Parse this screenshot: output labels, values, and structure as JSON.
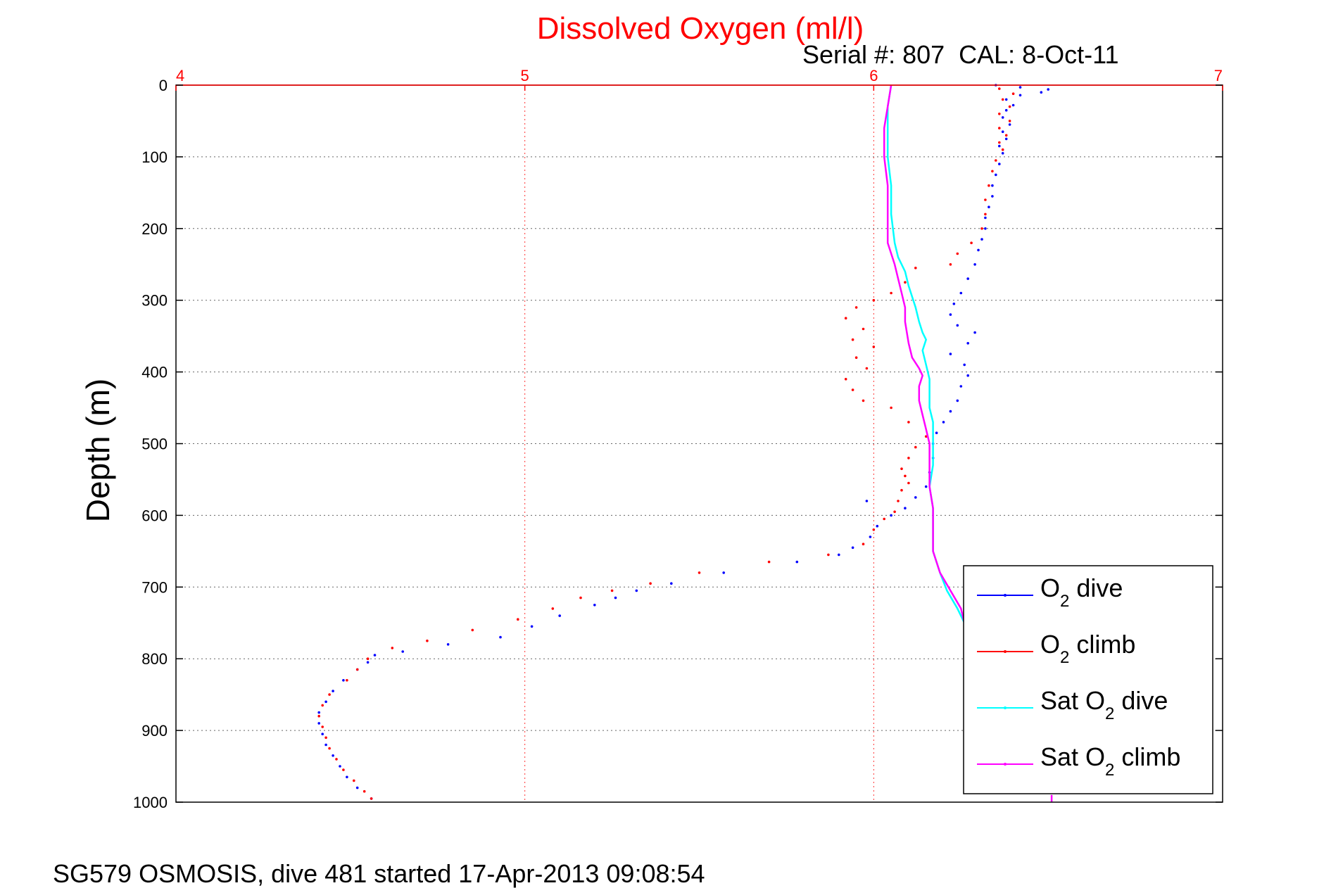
{
  "chart_data": {
    "type": "scatter",
    "title": "Dissolved Oxygen (ml/l)",
    "subtitle": "Serial #: 807  CAL: 8-Oct-11",
    "ylabel": "Depth (m)",
    "footer": "SG579 OSMOSIS, dive 481 started 17-Apr-2013 09:08:54",
    "xlim": [
      4,
      7
    ],
    "ylim": [
      0,
      1000
    ],
    "y_reversed": true,
    "x_axis_location": "top",
    "x_ticks": [
      "4",
      "5",
      "6",
      "7"
    ],
    "y_ticks": [
      "0",
      "100",
      "200",
      "300",
      "400",
      "500",
      "600",
      "700",
      "800",
      "900",
      "1000"
    ],
    "grid": true,
    "legend_position": "bottom-right",
    "legend": [
      {
        "base": "O",
        "sub": "2",
        "suffix": " dive",
        "prefix": ""
      },
      {
        "base": "O",
        "sub": "2",
        "suffix": " climb",
        "prefix": ""
      },
      {
        "base": "Sat O",
        "sub": "2",
        "suffix": " dive",
        "prefix": ""
      },
      {
        "base": "Sat O",
        "sub": "2",
        "suffix": " climb",
        "prefix": ""
      }
    ],
    "series": [
      {
        "name": "O2 dive",
        "color": "#0000ff",
        "style": "dots",
        "points": [
          [
            6.35,
            0
          ],
          [
            6.42,
            3
          ],
          [
            6.5,
            6
          ],
          [
            6.48,
            10
          ],
          [
            6.42,
            14
          ],
          [
            6.38,
            20
          ],
          [
            6.4,
            28
          ],
          [
            6.38,
            35
          ],
          [
            6.37,
            45
          ],
          [
            6.39,
            55
          ],
          [
            6.37,
            65
          ],
          [
            6.38,
            75
          ],
          [
            6.36,
            85
          ],
          [
            6.37,
            95
          ],
          [
            6.36,
            110
          ],
          [
            6.35,
            125
          ],
          [
            6.34,
            140
          ],
          [
            6.34,
            155
          ],
          [
            6.33,
            170
          ],
          [
            6.32,
            185
          ],
          [
            6.32,
            200
          ],
          [
            6.31,
            215
          ],
          [
            6.3,
            230
          ],
          [
            6.29,
            250
          ],
          [
            6.27,
            270
          ],
          [
            6.25,
            290
          ],
          [
            6.23,
            305
          ],
          [
            6.22,
            320
          ],
          [
            6.24,
            335
          ],
          [
            6.29,
            345
          ],
          [
            6.27,
            360
          ],
          [
            6.22,
            375
          ],
          [
            6.26,
            390
          ],
          [
            6.27,
            405
          ],
          [
            6.25,
            420
          ],
          [
            6.24,
            440
          ],
          [
            6.22,
            455
          ],
          [
            6.2,
            470
          ],
          [
            6.18,
            485
          ],
          [
            6.17,
            500
          ],
          [
            6.17,
            520
          ],
          [
            6.16,
            540
          ],
          [
            6.15,
            560
          ],
          [
            6.12,
            575
          ],
          [
            5.98,
            580
          ],
          [
            6.09,
            590
          ],
          [
            6.05,
            600
          ],
          [
            6.01,
            615
          ],
          [
            5.99,
            630
          ],
          [
            5.94,
            645
          ],
          [
            5.9,
            655
          ],
          [
            5.78,
            665
          ],
          [
            5.57,
            680
          ],
          [
            5.42,
            695
          ],
          [
            5.32,
            705
          ],
          [
            5.26,
            715
          ],
          [
            5.2,
            725
          ],
          [
            5.1,
            740
          ],
          [
            5.02,
            755
          ],
          [
            4.93,
            770
          ],
          [
            4.78,
            780
          ],
          [
            4.65,
            790
          ],
          [
            4.57,
            795
          ],
          [
            4.55,
            805
          ],
          [
            4.52,
            815
          ],
          [
            4.48,
            830
          ],
          [
            4.45,
            845
          ],
          [
            4.43,
            860
          ],
          [
            4.41,
            875
          ],
          [
            4.41,
            890
          ],
          [
            4.42,
            905
          ],
          [
            4.43,
            920
          ],
          [
            4.45,
            935
          ],
          [
            4.47,
            950
          ],
          [
            4.49,
            965
          ],
          [
            4.52,
            980
          ],
          [
            4.56,
            995
          ]
        ]
      },
      {
        "name": "O2 climb",
        "color": "#ff0000",
        "style": "dots",
        "points": [
          [
            6.36,
            5
          ],
          [
            6.4,
            12
          ],
          [
            6.37,
            20
          ],
          [
            6.39,
            30
          ],
          [
            6.36,
            40
          ],
          [
            6.39,
            50
          ],
          [
            6.36,
            60
          ],
          [
            6.38,
            70
          ],
          [
            6.36,
            80
          ],
          [
            6.37,
            90
          ],
          [
            6.35,
            105
          ],
          [
            6.34,
            120
          ],
          [
            6.33,
            140
          ],
          [
            6.32,
            160
          ],
          [
            6.32,
            180
          ],
          [
            6.31,
            200
          ],
          [
            6.28,
            220
          ],
          [
            6.24,
            235
          ],
          [
            6.22,
            250
          ],
          [
            6.12,
            255
          ],
          [
            6.09,
            275
          ],
          [
            6.05,
            290
          ],
          [
            6.0,
            300
          ],
          [
            5.95,
            310
          ],
          [
            5.92,
            325
          ],
          [
            5.97,
            340
          ],
          [
            5.94,
            355
          ],
          [
            6.0,
            365
          ],
          [
            5.95,
            380
          ],
          [
            5.98,
            395
          ],
          [
            5.92,
            410
          ],
          [
            5.94,
            425
          ],
          [
            5.97,
            440
          ],
          [
            6.05,
            450
          ],
          [
            6.1,
            470
          ],
          [
            6.15,
            490
          ],
          [
            6.12,
            505
          ],
          [
            6.1,
            520
          ],
          [
            6.08,
            535
          ],
          [
            6.09,
            545
          ],
          [
            6.1,
            555
          ],
          [
            6.08,
            565
          ],
          [
            6.07,
            580
          ],
          [
            6.06,
            595
          ],
          [
            6.03,
            605
          ],
          [
            6.0,
            620
          ],
          [
            5.97,
            640
          ],
          [
            5.87,
            655
          ],
          [
            5.7,
            665
          ],
          [
            5.5,
            680
          ],
          [
            5.36,
            695
          ],
          [
            5.25,
            705
          ],
          [
            5.16,
            715
          ],
          [
            5.08,
            730
          ],
          [
            4.98,
            745
          ],
          [
            4.85,
            760
          ],
          [
            4.72,
            775
          ],
          [
            4.62,
            785
          ],
          [
            4.55,
            800
          ],
          [
            4.52,
            815
          ],
          [
            4.49,
            830
          ],
          [
            4.44,
            850
          ],
          [
            4.42,
            865
          ],
          [
            4.41,
            880
          ],
          [
            4.42,
            895
          ],
          [
            4.43,
            910
          ],
          [
            4.44,
            925
          ],
          [
            4.46,
            940
          ],
          [
            4.48,
            955
          ],
          [
            4.51,
            970
          ],
          [
            4.54,
            985
          ],
          [
            4.56,
            995
          ]
        ]
      },
      {
        "name": "Sat O2 dive",
        "color": "#00ffff",
        "style": "line",
        "points": [
          [
            6.05,
            0
          ],
          [
            6.04,
            30
          ],
          [
            6.04,
            60
          ],
          [
            6.04,
            100
          ],
          [
            6.05,
            140
          ],
          [
            6.05,
            180
          ],
          [
            6.06,
            220
          ],
          [
            6.07,
            240
          ],
          [
            6.09,
            260
          ],
          [
            6.1,
            280
          ],
          [
            6.12,
            310
          ],
          [
            6.13,
            330
          ],
          [
            6.14,
            345
          ],
          [
            6.15,
            355
          ],
          [
            6.14,
            370
          ],
          [
            6.15,
            390
          ],
          [
            6.16,
            410
          ],
          [
            6.16,
            430
          ],
          [
            6.16,
            450
          ],
          [
            6.17,
            470
          ],
          [
            6.17,
            500
          ],
          [
            6.17,
            530
          ],
          [
            6.16,
            560
          ],
          [
            6.17,
            590
          ],
          [
            6.17,
            620
          ],
          [
            6.17,
            650
          ],
          [
            6.19,
            680
          ],
          [
            6.21,
            705
          ],
          [
            6.24,
            730
          ],
          [
            6.26,
            750
          ]
        ]
      },
      {
        "name": "Sat O2 climb",
        "color": "#ff00ff",
        "style": "line",
        "points": [
          [
            6.05,
            0
          ],
          [
            6.04,
            30
          ],
          [
            6.03,
            60
          ],
          [
            6.03,
            100
          ],
          [
            6.04,
            140
          ],
          [
            6.04,
            180
          ],
          [
            6.04,
            220
          ],
          [
            6.06,
            250
          ],
          [
            6.07,
            270
          ],
          [
            6.08,
            290
          ],
          [
            6.09,
            310
          ],
          [
            6.09,
            330
          ],
          [
            6.1,
            360
          ],
          [
            6.11,
            380
          ],
          [
            6.13,
            395
          ],
          [
            6.14,
            405
          ],
          [
            6.13,
            420
          ],
          [
            6.13,
            440
          ],
          [
            6.14,
            460
          ],
          [
            6.15,
            480
          ],
          [
            6.16,
            500
          ],
          [
            6.16,
            520
          ],
          [
            6.16,
            540
          ],
          [
            6.16,
            560
          ],
          [
            6.17,
            590
          ],
          [
            6.17,
            620
          ],
          [
            6.17,
            650
          ],
          [
            6.19,
            680
          ],
          [
            6.22,
            705
          ],
          [
            6.25,
            730
          ],
          [
            6.26,
            750
          ],
          [
            6.51,
            990
          ],
          [
            6.51,
            1000
          ]
        ]
      }
    ]
  }
}
